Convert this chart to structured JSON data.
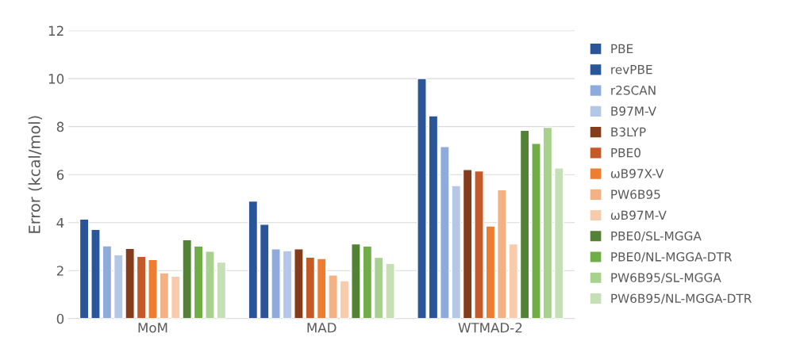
{
  "chart_data": {
    "type": "bar",
    "ylabel": "Error (kcal/mol)",
    "categories": [
      "MoM",
      "MAD",
      "WTMAD-2"
    ],
    "ylim": [
      0,
      12
    ],
    "yticks": [
      0,
      2,
      4,
      6,
      8,
      10,
      12
    ],
    "grid": "y",
    "legend": "right",
    "series": [
      {
        "name": "PBE",
        "color": "#2a5699",
        "values": [
          4.15,
          4.9,
          10.0
        ]
      },
      {
        "name": "revPBE",
        "color": "#2a5699",
        "values": [
          3.72,
          3.93,
          8.45
        ]
      },
      {
        "name": "r2SCAN",
        "color": "#8faadc",
        "values": [
          3.03,
          2.91,
          7.17
        ]
      },
      {
        "name": "B97M-V",
        "color": "#b4c7e7",
        "values": [
          2.66,
          2.83,
          5.54
        ]
      },
      {
        "name": "B3LYP",
        "color": "#843c1c",
        "values": [
          2.92,
          2.91,
          6.21
        ]
      },
      {
        "name": "PBE0",
        "color": "#c55a28",
        "values": [
          2.59,
          2.56,
          6.15
        ]
      },
      {
        "name": "ωB97X-V",
        "color": "#ed7d31",
        "values": [
          2.46,
          2.5,
          3.86
        ]
      },
      {
        "name": "PW6B95",
        "color": "#f4b183",
        "values": [
          1.91,
          1.82,
          5.37
        ]
      },
      {
        "name": "ωB97M-V",
        "color": "#f8cbad",
        "values": [
          1.77,
          1.58,
          3.11
        ]
      },
      {
        "name": "PBE0/SL-MGGA",
        "color": "#538135",
        "values": [
          3.29,
          3.11,
          7.85
        ]
      },
      {
        "name": "PBE0/NL-MGGA-DTR",
        "color": "#70ad47",
        "values": [
          3.02,
          3.02,
          7.3
        ]
      },
      {
        "name": "PW6B95/SL-MGGA",
        "color": "#a9d18e",
        "values": [
          2.81,
          2.55,
          7.97
        ]
      },
      {
        "name": "PW6B95/NL-MGGA-DTR",
        "color": "#c5e0b4",
        "values": [
          2.35,
          2.3,
          6.28
        ]
      }
    ]
  }
}
